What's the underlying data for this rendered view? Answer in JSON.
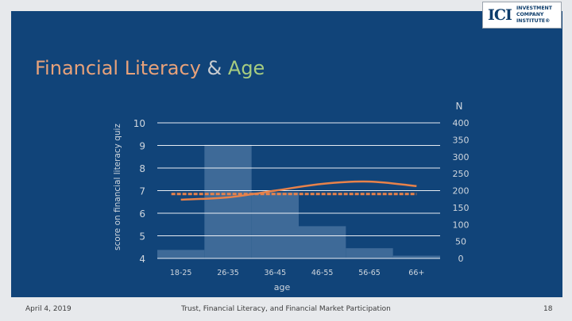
{
  "slide": {
    "title_part1": "Financial Literacy",
    "title_amp": " & ",
    "title_part2": "Age",
    "footer_date": "April 4, 2019",
    "footer_title": "Trust, Financial Literacy, and Financial Market Participation",
    "page_number": "18"
  },
  "logo": {
    "mark": "ICI",
    "lines": [
      "INVESTMENT",
      "COMPANY",
      "INSTITUTE®"
    ]
  },
  "colors": {
    "background": "#e7e9ec",
    "panel": "#114479",
    "title_part1": "#e8a27a",
    "title_amp": "#c9ccd0",
    "title_part2": "#a6cc80",
    "bar": "#3e6a98",
    "line": "#e8824a",
    "dashed": "#e8824a",
    "axis_text": "#cfd6de",
    "grid": "#ffffff"
  },
  "chart_data": {
    "type": "bar",
    "xlabel": "age",
    "ylabel": "score on financial literacy quiz",
    "y2label": "N",
    "categories": [
      "18-25",
      "26-35",
      "36-45",
      "46-55",
      "56-65",
      "66+"
    ],
    "y_ticks": [
      "4",
      "5",
      "6",
      "7",
      "8",
      "9",
      "10"
    ],
    "y2_ticks": [
      "0",
      "50",
      "100",
      "150",
      "200",
      "250",
      "300",
      "350",
      "400"
    ],
    "ylim": [
      4,
      10
    ],
    "y2lim": [
      0,
      400
    ],
    "series": [
      {
        "kind": "bar",
        "axis": "N",
        "values": [
          25,
          335,
          195,
          95,
          30,
          8
        ]
      },
      {
        "kind": "line",
        "axis": "score",
        "values": [
          6.6,
          6.7,
          7.0,
          7.3,
          7.4,
          7.2
        ]
      },
      {
        "kind": "dashed",
        "axis": "score",
        "values": [
          6.85,
          6.85,
          6.85,
          6.85,
          6.85,
          6.85
        ]
      }
    ],
    "grid": true
  }
}
